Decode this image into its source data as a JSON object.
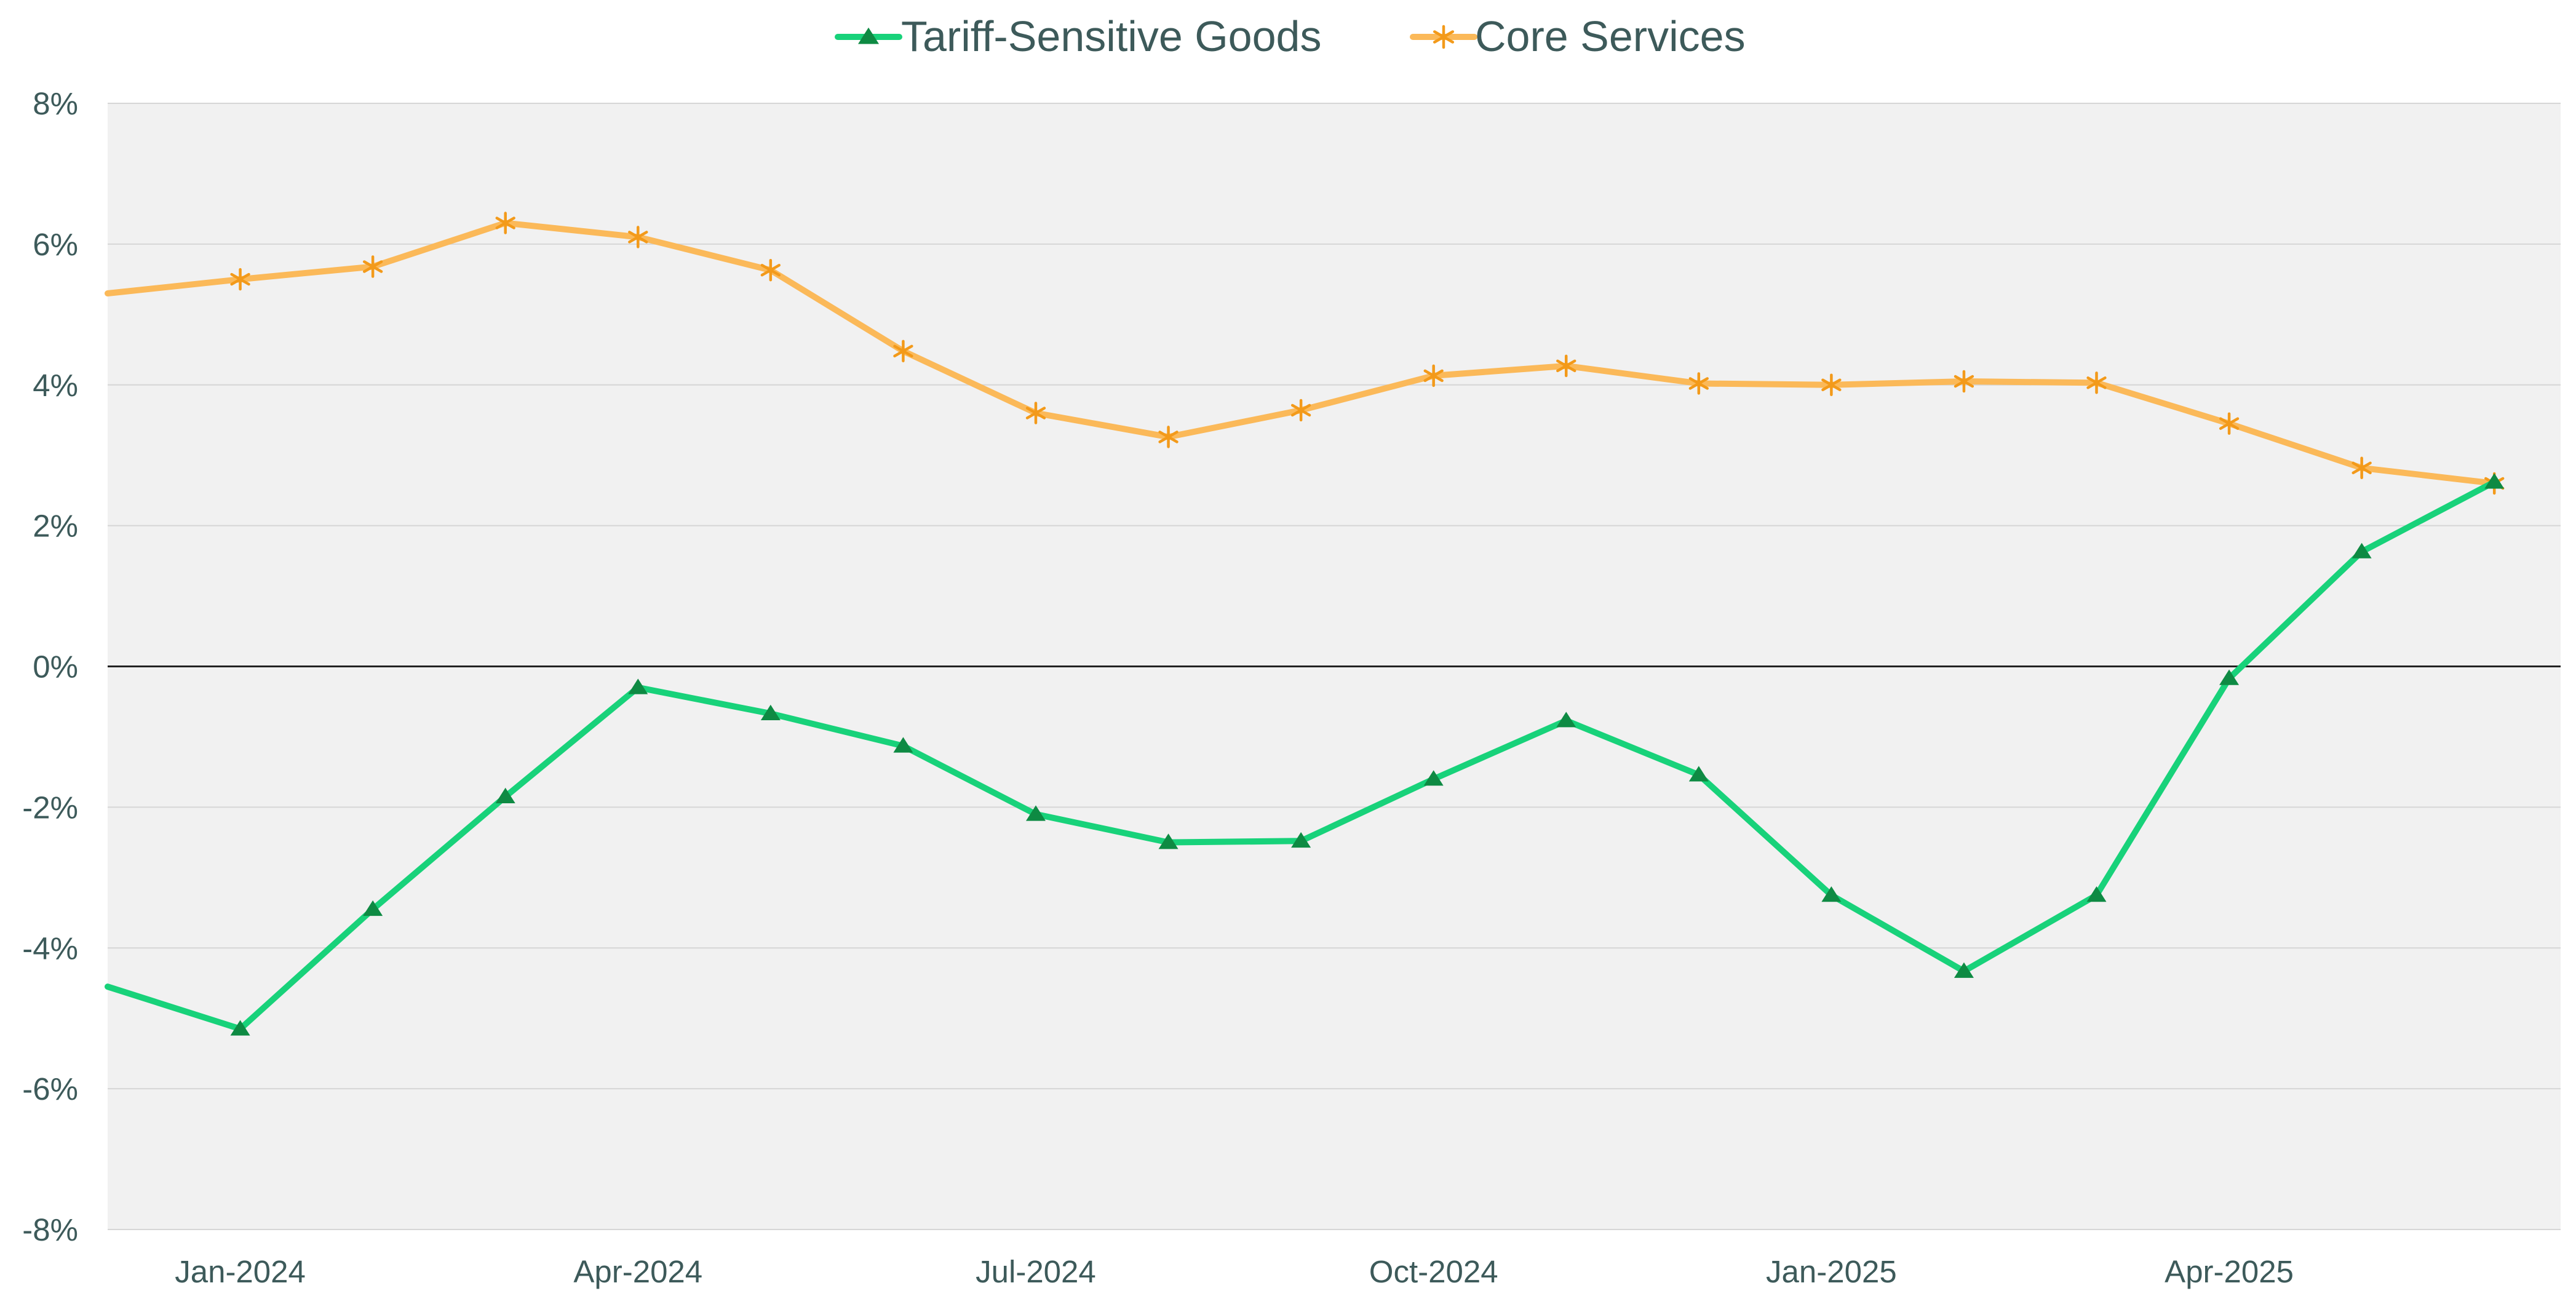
{
  "chart_data": {
    "type": "line",
    "title": "",
    "xlabel": "",
    "ylabel": "",
    "ylim": [
      -8,
      8
    ],
    "y_ticks": [
      "8%",
      "6%",
      "4%",
      "2%",
      "0%",
      "-2%",
      "-4%",
      "-6%",
      "-8%"
    ],
    "y_tick_values": [
      8,
      6,
      4,
      2,
      0,
      -2,
      -4,
      -6,
      -8
    ],
    "x_tick_labels": [
      "Jan-2024",
      "Apr-2024",
      "Jul-2024",
      "Oct-2024",
      "Jan-2025",
      "Apr-2025"
    ],
    "x_tick_indices": [
      1,
      4,
      7,
      10,
      13,
      16
    ],
    "x": [
      "Dec-2023",
      "Jan-2024",
      "Feb-2024",
      "Mar-2024",
      "Apr-2024",
      "May-2024",
      "Jun-2024",
      "Jul-2024",
      "Aug-2024",
      "Sep-2024",
      "Oct-2024",
      "Nov-2024",
      "Dec-2024",
      "Jan-2025",
      "Feb-2025",
      "Mar-2025",
      "Apr-2025",
      "May-2025",
      "Jun-2025"
    ],
    "grid": true,
    "legend_position": "top-center",
    "background": "#f1f1f1",
    "series": [
      {
        "name": "Tariff-Sensitive Goods",
        "line_color": "#18d27a",
        "marker_color": "#0e8a43",
        "marker": "triangle",
        "values": [
          -4.55,
          -5.15,
          -3.45,
          -1.85,
          -0.3,
          -0.67,
          -1.13,
          -2.1,
          -2.5,
          -2.48,
          -1.6,
          -0.77,
          -1.54,
          -3.25,
          -4.33,
          -3.25,
          -0.17,
          1.63,
          2.62
        ]
      },
      {
        "name": "Core Services",
        "line_color": "#fbb959",
        "marker_color": "#f39a1a",
        "marker": "asterisk",
        "values": [
          5.3,
          5.5,
          5.68,
          6.3,
          6.1,
          5.63,
          4.48,
          3.6,
          3.26,
          3.64,
          4.13,
          4.27,
          4.02,
          4.0,
          4.05,
          4.03,
          3.45,
          2.82,
          2.6
        ]
      }
    ]
  }
}
